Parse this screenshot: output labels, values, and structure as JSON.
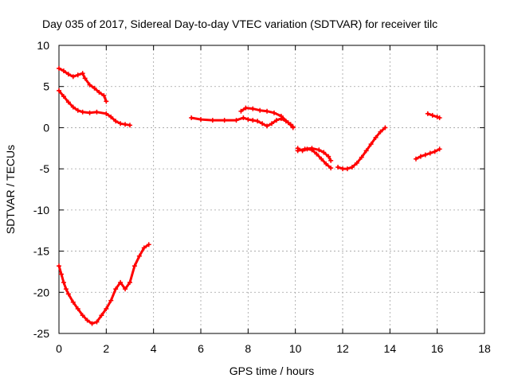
{
  "chart_data": {
    "type": "scatter",
    "title": "Day 035 of 2017, Sidereal Day-to-day VTEC variation (SDTVAR) for receiver tilc",
    "xlabel": "GPS time / hours",
    "ylabel": "SDTVAR / TECUs",
    "xlim": [
      0,
      18
    ],
    "ylim": [
      -25,
      10
    ],
    "xticks": [
      "0",
      "2",
      "4",
      "6",
      "8",
      "10",
      "12",
      "14",
      "16",
      "18"
    ],
    "yticks": [
      "10",
      "5",
      "0",
      "-5",
      "-10",
      "-15",
      "-20",
      "-25"
    ],
    "grid": true,
    "marker_color": "#ff0000",
    "series": [
      {
        "name": "segment-1",
        "x": [
          0.0,
          0.2,
          0.4,
          0.6,
          0.8,
          1.0,
          1.1,
          1.3,
          1.5,
          1.7,
          1.9,
          2.0
        ],
        "y": [
          7.2,
          6.9,
          6.5,
          6.2,
          6.4,
          6.6,
          6.0,
          5.2,
          4.8,
          4.3,
          3.9,
          3.2
        ]
      },
      {
        "name": "segment-2",
        "x": [
          0.0,
          0.2,
          0.4,
          0.6,
          0.8,
          1.0,
          1.3,
          1.6,
          2.0,
          2.2,
          2.4,
          2.6,
          2.8,
          3.0
        ],
        "y": [
          4.5,
          3.8,
          3.1,
          2.5,
          2.1,
          1.9,
          1.8,
          1.9,
          1.7,
          1.3,
          0.8,
          0.5,
          0.4,
          0.3
        ]
      },
      {
        "name": "segment-3",
        "x": [
          0.0,
          0.1,
          0.2,
          0.3,
          0.4,
          0.6,
          0.8,
          1.0,
          1.2,
          1.4,
          1.6,
          1.8,
          2.0,
          2.2,
          2.4,
          2.6,
          2.8,
          3.0,
          3.2,
          3.4,
          3.6,
          3.8
        ],
        "y": [
          -16.8,
          -17.8,
          -18.8,
          -19.6,
          -20.2,
          -21.2,
          -22.0,
          -22.8,
          -23.4,
          -23.8,
          -23.6,
          -22.8,
          -22.0,
          -21.0,
          -19.6,
          -18.8,
          -19.6,
          -18.8,
          -16.8,
          -15.6,
          -14.6,
          -14.2
        ]
      },
      {
        "name": "segment-4",
        "x": [
          5.6,
          6.0,
          6.5,
          7.0,
          7.5,
          7.8,
          8.0,
          8.2,
          8.4,
          8.6,
          8.8,
          9.0,
          9.2,
          9.4,
          9.6,
          9.8,
          9.9
        ],
        "y": [
          1.2,
          1.0,
          0.9,
          0.9,
          0.9,
          1.2,
          1.0,
          0.9,
          0.8,
          0.5,
          0.2,
          0.5,
          0.9,
          1.1,
          0.8,
          0.4,
          0.1
        ]
      },
      {
        "name": "segment-5",
        "x": [
          7.7,
          7.9,
          8.2,
          8.5,
          8.8,
          9.1,
          9.4,
          9.7,
          9.9
        ],
        "y": [
          2.0,
          2.4,
          2.3,
          2.1,
          2.0,
          1.8,
          1.4,
          0.6,
          0.0
        ]
      },
      {
        "name": "segment-6",
        "x": [
          10.1,
          10.3,
          10.5,
          10.7,
          10.9,
          11.1,
          11.3,
          11.5
        ],
        "y": [
          -2.5,
          -2.8,
          -2.6,
          -2.7,
          -3.2,
          -3.8,
          -4.4,
          -4.9
        ]
      },
      {
        "name": "segment-7",
        "x": [
          10.1,
          10.4,
          10.7,
          11.0,
          11.2,
          11.4,
          11.5
        ],
        "y": [
          -2.8,
          -2.6,
          -2.5,
          -2.7,
          -3.0,
          -3.5,
          -4.0
        ]
      },
      {
        "name": "segment-8",
        "x": [
          11.8,
          12.0,
          12.2,
          12.4,
          12.6,
          12.8,
          13.0,
          13.2,
          13.4,
          13.6,
          13.8
        ],
        "y": [
          -4.8,
          -5.0,
          -5.0,
          -4.8,
          -4.3,
          -3.6,
          -2.8,
          -2.0,
          -1.2,
          -0.5,
          0.0
        ]
      },
      {
        "name": "segment-9",
        "x": [
          15.6,
          15.8,
          16.0,
          16.1
        ],
        "y": [
          1.7,
          1.5,
          1.3,
          1.2
        ]
      },
      {
        "name": "segment-10",
        "x": [
          15.1,
          15.3,
          15.5,
          15.7,
          15.9,
          16.1
        ],
        "y": [
          -3.8,
          -3.5,
          -3.3,
          -3.1,
          -2.9,
          -2.6
        ]
      }
    ]
  }
}
